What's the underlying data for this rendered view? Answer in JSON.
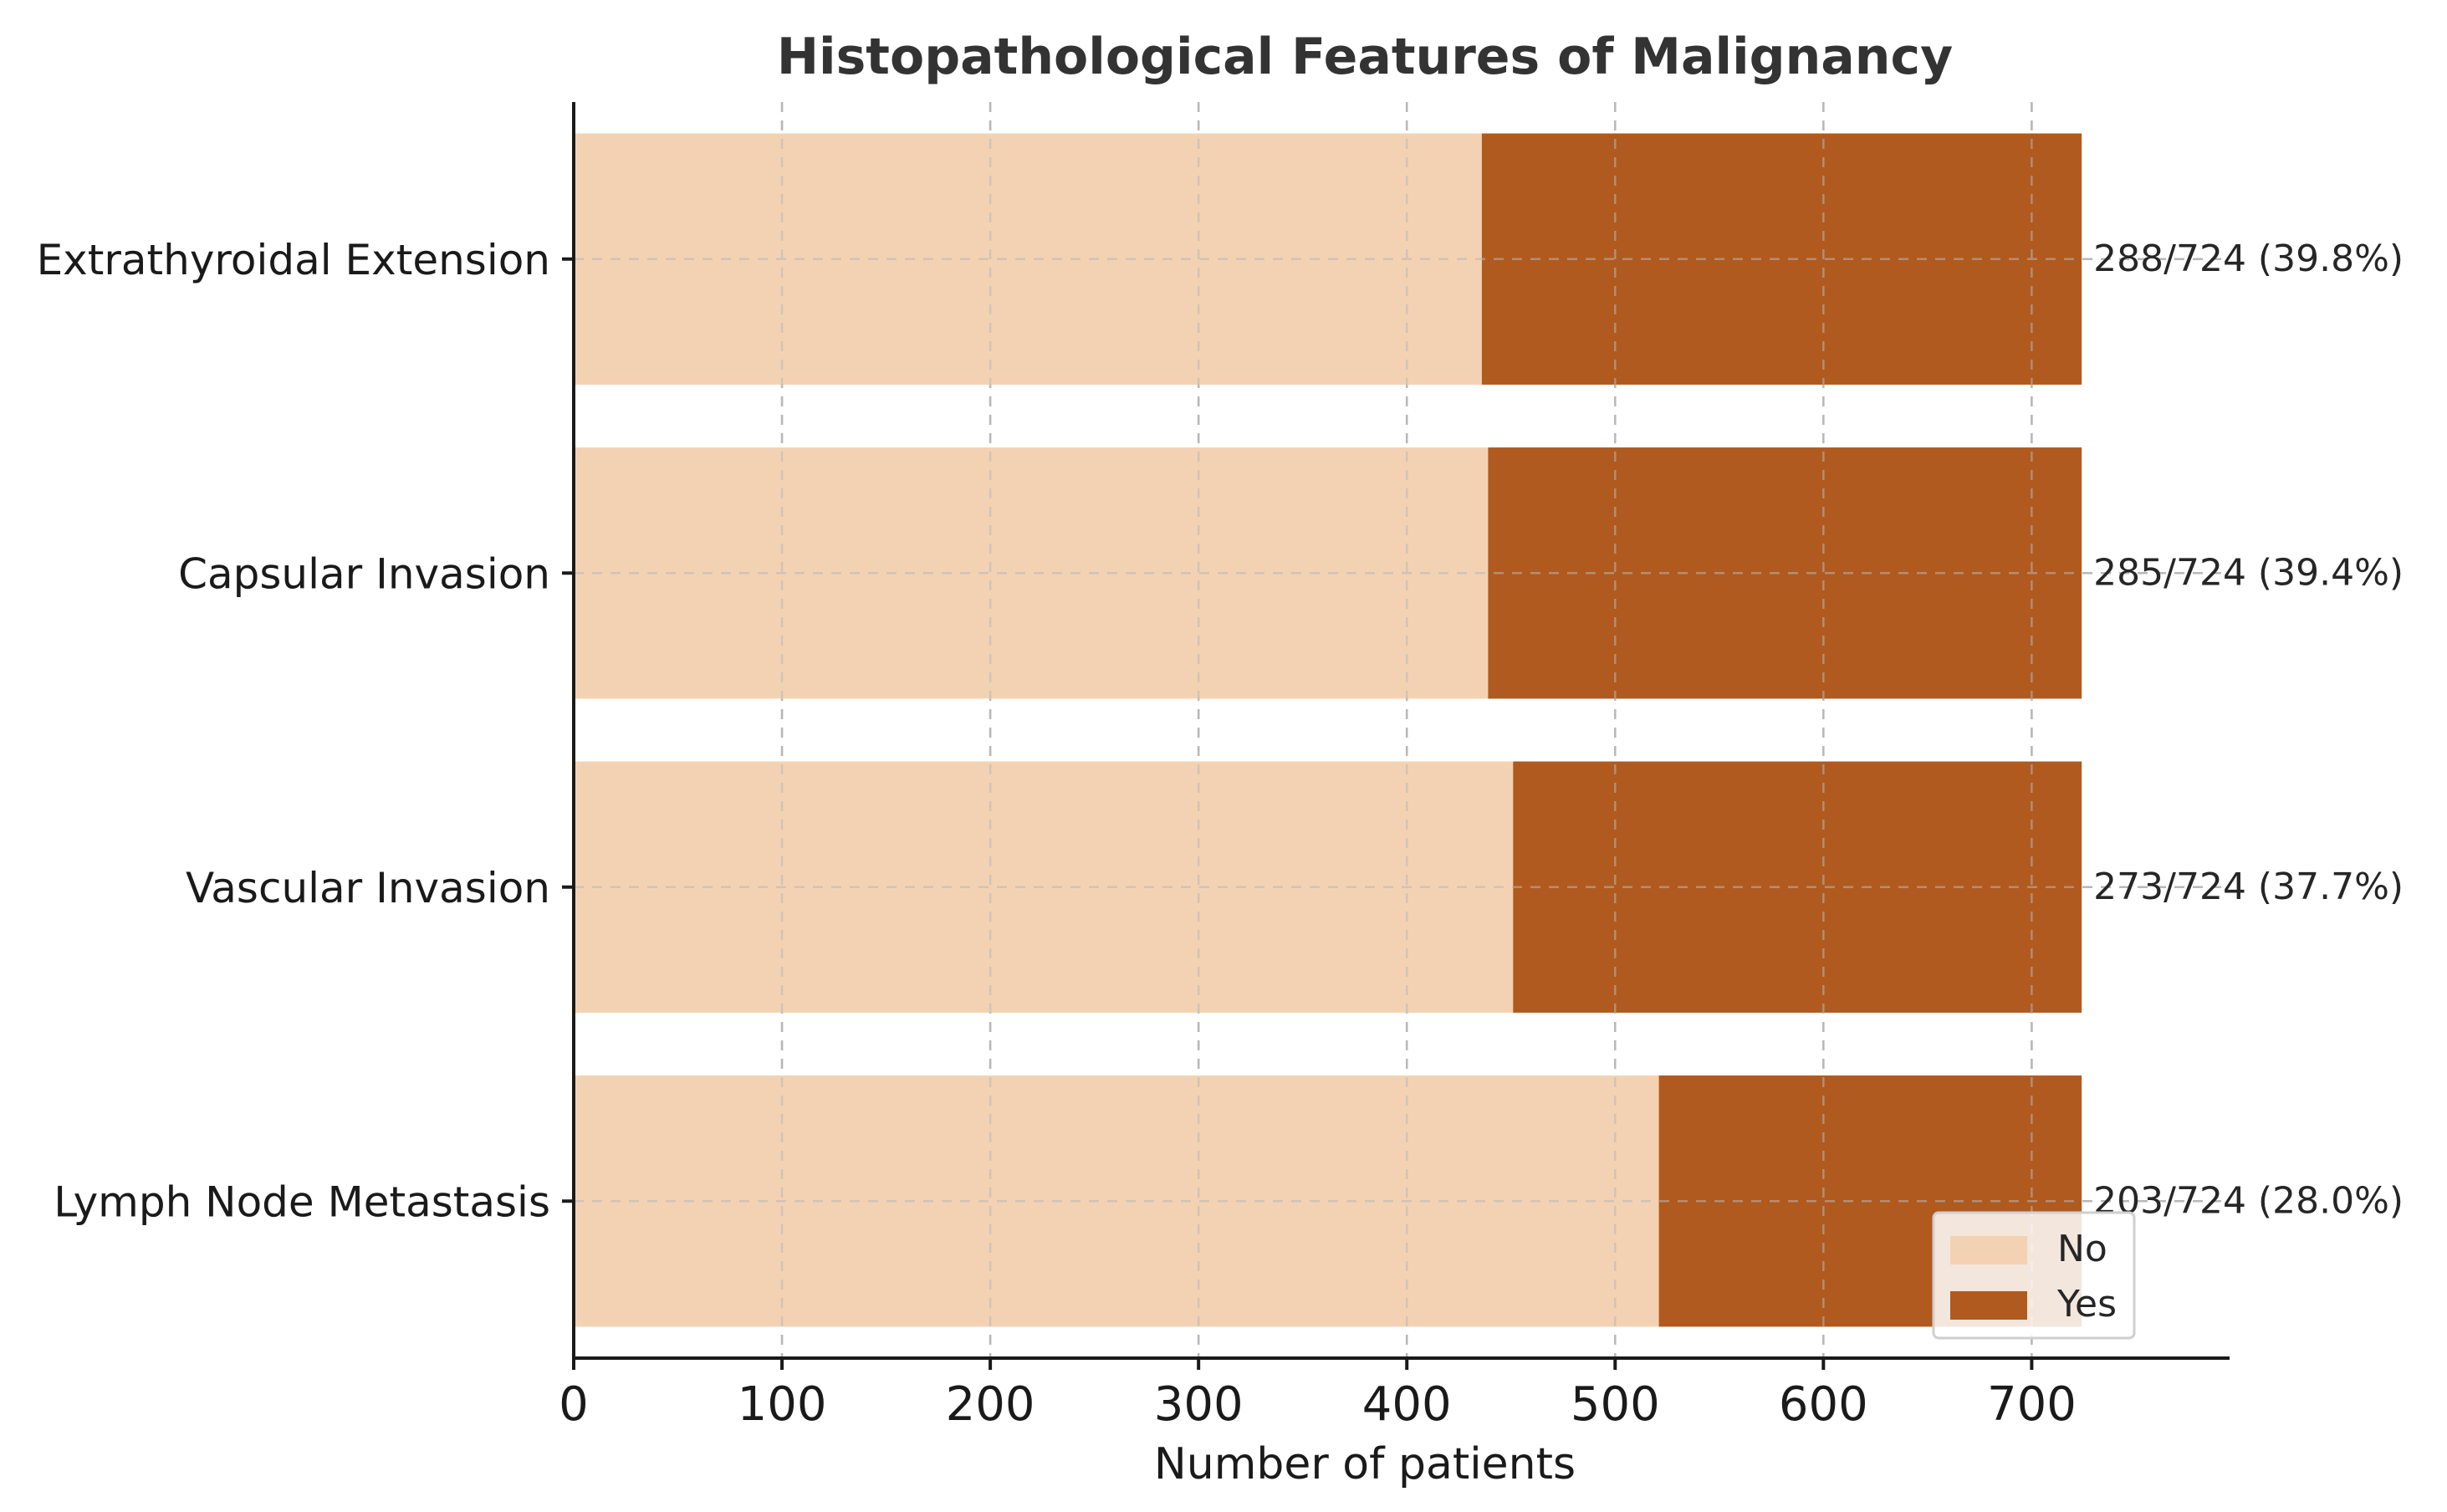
{
  "chart_data": {
    "type": "bar",
    "orientation": "horizontal",
    "stacked": true,
    "title": "Histopathological Features of Malignancy",
    "xlabel": "Number of patients",
    "ylabel": "",
    "xlim": [
      0,
      795
    ],
    "xticks": [
      "0",
      "100",
      "200",
      "300",
      "400",
      "500",
      "600",
      "700"
    ],
    "categories": [
      "Extrathyroidal Extension",
      "Capsular Invasion",
      "Vascular Invasion",
      "Lymph Node Metastasis"
    ],
    "series": [
      {
        "name": "No",
        "values": [
          436,
          439,
          451,
          521
        ],
        "color": "#f3d2b3"
      },
      {
        "name": "Yes",
        "values": [
          288,
          285,
          273,
          203
        ],
        "color": "#b05a1f"
      }
    ],
    "annotations": [
      "288/724 (39.8%)",
      "285/724 (39.4%)",
      "273/724 (37.7%)",
      "203/724 (28.0%)"
    ],
    "grid": true,
    "legend_position": "lower-right"
  }
}
